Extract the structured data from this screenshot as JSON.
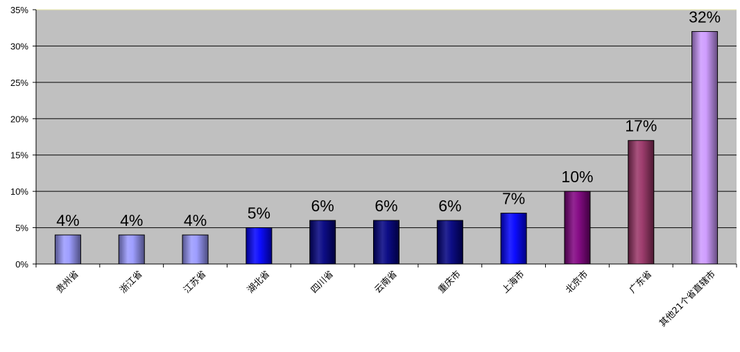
{
  "chart_data": {
    "type": "bar",
    "categories": [
      "贵州省",
      "浙江省",
      "江苏省",
      "湖北省",
      "四川省",
      "云南省",
      "重庆市",
      "上海市",
      "北京市",
      "广东省",
      "其他21个省直辖市"
    ],
    "values": [
      4,
      4,
      4,
      5,
      6,
      6,
      6,
      7,
      10,
      17,
      32
    ],
    "data_labels": [
      "4%",
      "4%",
      "4%",
      "5%",
      "6%",
      "6%",
      "6%",
      "7%",
      "10%",
      "17%",
      "32%"
    ],
    "yticks": [
      0,
      5,
      10,
      15,
      20,
      25,
      30,
      35
    ],
    "ytick_labels": [
      "0%",
      "5%",
      "10%",
      "15%",
      "20%",
      "25%",
      "30%",
      "35%"
    ],
    "ylim": [
      0,
      35
    ],
    "grid": true,
    "legend": "none",
    "colors": {
      "plot_background": "#c0c0c0",
      "bars": [
        "#9999ff",
        "#9999ff",
        "#9999ff",
        "#0000ff",
        "#000080",
        "#000080",
        "#000080",
        "#0000ff",
        "#800080",
        "#993366",
        "#cc99ff"
      ]
    }
  }
}
